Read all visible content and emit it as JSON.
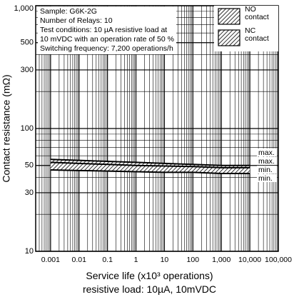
{
  "chart_data": {
    "type": "line",
    "xlabel": [
      "Service life (x10³ operations)",
      "resistive load: 10µA, 10mVDC"
    ],
    "ylabel": "Contact resistance (mΩ)",
    "xscale": "log",
    "yscale": "log",
    "grid": true,
    "minor_grid": true,
    "xlim": [
      0.0003,
      100000
    ],
    "xticks": [
      0.001,
      0.01,
      0.1,
      1,
      10,
      100,
      {
        "value": 1000,
        "label": "1,000"
      },
      {
        "value": 10000,
        "label": "10,000"
      },
      {
        "value": 100000,
        "label": "100,000"
      }
    ],
    "ylim": [
      10,
      1000
    ],
    "yticks": [
      10,
      30,
      50,
      100,
      300,
      500,
      {
        "value": 1000,
        "label": "1,000"
      }
    ],
    "x": [
      0.001,
      0.01,
      0.1,
      1,
      10,
      100,
      1000,
      10000
    ],
    "series": [
      {
        "name": "NO contact",
        "color": "#000000",
        "max": [
          56,
          55,
          54,
          53,
          52,
          51,
          50,
          50
        ],
        "min": [
          48,
          47.5,
          47,
          46.5,
          46,
          46,
          45,
          45
        ]
      },
      {
        "name": "NC contact",
        "color": "#000000",
        "max": [
          53,
          52,
          51,
          50,
          49.5,
          49,
          48,
          48
        ],
        "min": [
          46,
          45.5,
          45,
          44.5,
          44,
          44,
          43,
          43
        ]
      }
    ],
    "annotations": [
      "Sample: G6K-2G",
      "Number of Relays: 10",
      "Test conditions: 10 µA resistive load at",
      "10 mVDC with an operation rate of 50 %",
      "Switching frequency: 7,200 operations/h"
    ],
    "end_labels": [
      "max.",
      "max.",
      "min.",
      "min."
    ]
  }
}
